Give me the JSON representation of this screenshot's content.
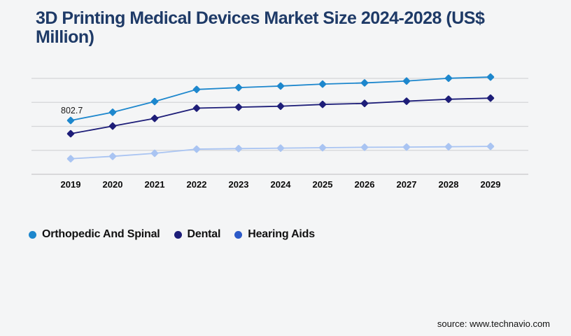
{
  "page": {
    "background": "#f4f5f6"
  },
  "header": {
    "title": "3D Printing Medical Devices Market Size 2024-2028 (US$ Million)",
    "title_color": "#1e3a67"
  },
  "chart_data": {
    "type": "line",
    "title": "3D Printing Medical Devices Market Size 2024-2028 (US$ Million)",
    "categories": [
      "2019",
      "2020",
      "2021",
      "2022",
      "2023",
      "2024",
      "2025",
      "2026",
      "2027",
      "2028",
      "2029"
    ],
    "series": [
      {
        "name": "Orthopedic And Spinal",
        "color": "#1d87cd",
        "legend_color": "#1d87cd",
        "values": [
          802.7,
          925,
          1085,
          1265,
          1293,
          1316,
          1345,
          1363,
          1391,
          1432,
          1450
        ]
      },
      {
        "name": "Dental",
        "color": "#1d1d78",
        "legend_color": "#1d1d78",
        "values": [
          605,
          719,
          834,
          986,
          1001,
          1015,
          1042,
          1057,
          1090,
          1119,
          1136
        ]
      },
      {
        "name": "Hearing Aids",
        "color": "#a9c4f2",
        "legend_color": "#2c5ac8",
        "values": [
          232,
          268,
          313,
          375,
          383,
          390,
          397,
          403,
          406,
          411,
          416
        ]
      }
    ],
    "annotations": [
      {
        "series_index": 0,
        "point_index": 0,
        "label": "802.7"
      }
    ],
    "xlabel": "",
    "ylabel": "",
    "ylim": [
      0,
      1430
    ],
    "gridline_count": 5,
    "grid": true,
    "grid_color": "#d4d5d8",
    "axis_line_color": "#c6c7ca",
    "marker": "diamond",
    "legend_position": "bottom"
  },
  "footer": {
    "source": "source: www.technavio.com"
  }
}
